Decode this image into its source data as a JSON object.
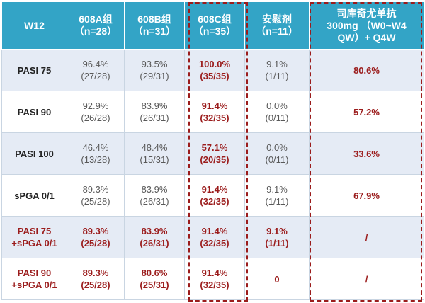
{
  "header": {
    "col0": [
      "W12"
    ],
    "col1": [
      "608A组",
      "（n=28）"
    ],
    "col2": [
      "608B组",
      "（n=31）"
    ],
    "col3": [
      "608C组",
      "（n=35）"
    ],
    "col4": [
      "安慰剂",
      "（n=11）"
    ],
    "col5": [
      "司库奇尤单抗",
      "300mg （W0~W4",
      "QW）+ Q4W"
    ]
  },
  "rows": [
    {
      "label": [
        "PASI 75"
      ],
      "a": [
        "96.4%",
        "(27/28)"
      ],
      "b": [
        "93.5%",
        "(29/31)"
      ],
      "c": [
        "100.0%",
        "(35/35)"
      ],
      "p": [
        "9.1%",
        "(1/11)"
      ],
      "s": [
        "80.6%"
      ]
    },
    {
      "label": [
        "PASI 90"
      ],
      "a": [
        "92.9%",
        "(26/28)"
      ],
      "b": [
        "83.9%",
        "(26/31)"
      ],
      "c": [
        "91.4%",
        "(32/35)"
      ],
      "p": [
        "0.0%",
        "(0/11)"
      ],
      "s": [
        "57.2%"
      ]
    },
    {
      "label": [
        "PASI 100"
      ],
      "a": [
        "46.4%",
        "(13/28)"
      ],
      "b": [
        "48.4%",
        "(15/31)"
      ],
      "c": [
        "57.1%",
        "(20/35)"
      ],
      "p": [
        "0.0%",
        "(0/11)"
      ],
      "s": [
        "33.6%"
      ]
    },
    {
      "label": [
        "sPGA 0/1"
      ],
      "a": [
        "89.3%",
        "(25/28)"
      ],
      "b": [
        "83.9%",
        "(26/31)"
      ],
      "c": [
        "91.4%",
        "(32/35)"
      ],
      "p": [
        "9.1%",
        "(1/11)"
      ],
      "s": [
        "67.9%"
      ]
    },
    {
      "label": [
        "PASI 75",
        "+sPGA 0/1"
      ],
      "a": [
        "89.3%",
        "(25/28)"
      ],
      "b": [
        "83.9%",
        "(26/31)"
      ],
      "c": [
        "91.4%",
        "(32/35)"
      ],
      "p": [
        "9.1%",
        "(1/11)"
      ],
      "s": [
        "/"
      ]
    },
    {
      "label": [
        "PASI 90",
        "+sPGA 0/1"
      ],
      "a": [
        "89.3%",
        "(25/28)"
      ],
      "b": [
        "80.6%",
        "(25/31)"
      ],
      "c": [
        "91.4%",
        "(32/35)"
      ],
      "p": [
        "0"
      ],
      "s": [
        "/"
      ]
    }
  ],
  "colors": {
    "header_bg": "#33a4c6",
    "row_alt_bg": "#e5ebf5",
    "highlight_red": "#9b1c1c"
  }
}
